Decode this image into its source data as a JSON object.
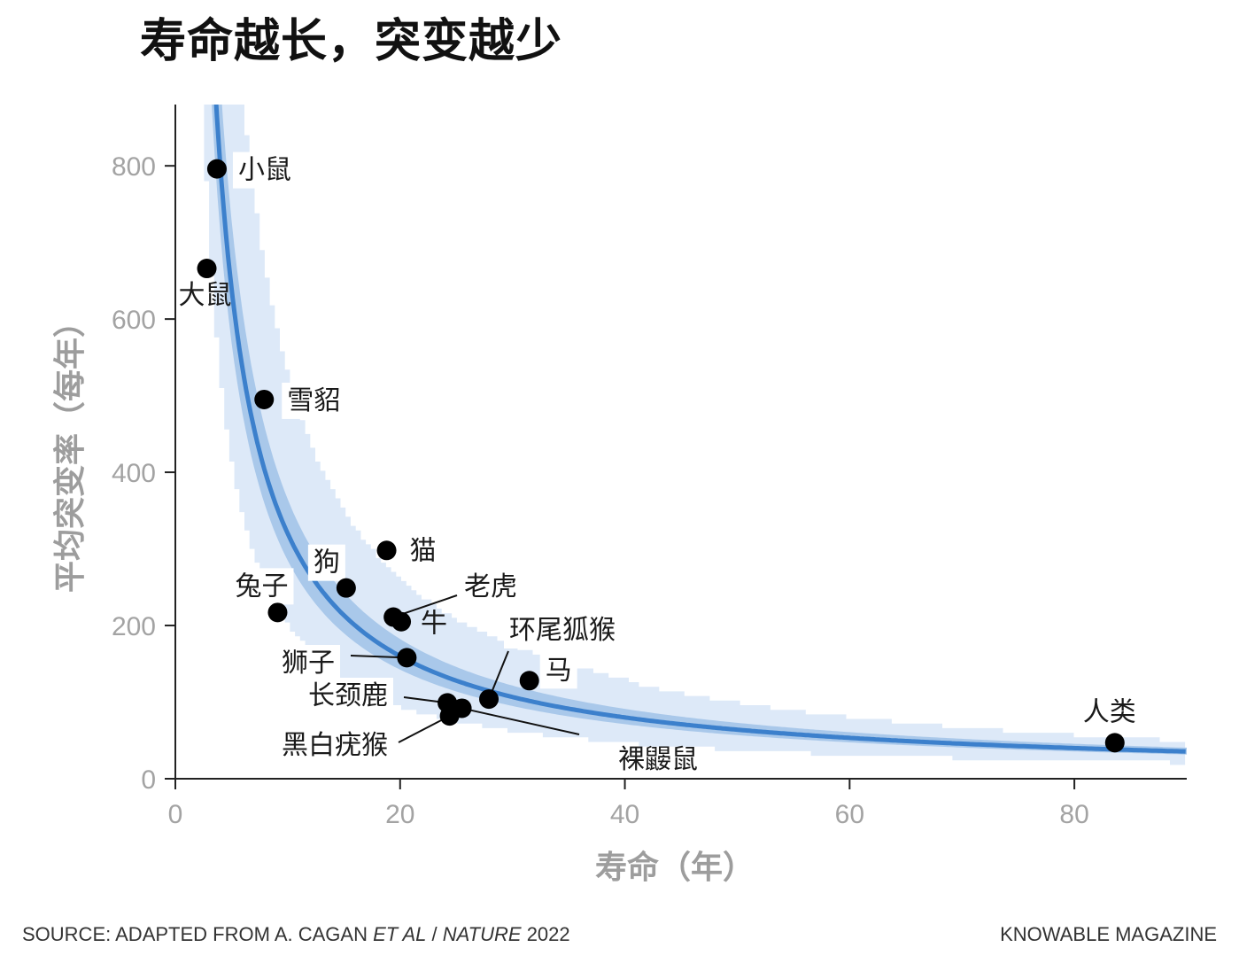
{
  "title": "寿命越长，突变越少",
  "footer": {
    "source_prefix": "SOURCE: ADAPTED FROM A. CAGAN ",
    "source_italic_1": "ET AL",
    "source_sep": " / ",
    "source_italic_2": "NATURE",
    "source_year": " 2022",
    "credit": "KNOWABLE MAGAZINE"
  },
  "colors": {
    "curve": "#3c80cc",
    "inner_band": "#a9c8ea",
    "outer_band": "#dde9f8",
    "point": "#000000",
    "axis": "#222222",
    "tick_text": "#a3a3a3",
    "axis_title": "#9d9d9d"
  },
  "chart_data": {
    "type": "scatter",
    "xlabel": "寿命（年）",
    "ylabel": "平均突变率（每年）",
    "xlim": [
      0,
      90
    ],
    "ylim": [
      0,
      880
    ],
    "xticks": [
      0,
      20,
      40,
      60,
      80
    ],
    "yticks": [
      0,
      200,
      400,
      600,
      800
    ],
    "grid": false,
    "fit": {
      "form": "y = k / x",
      "k": 3200,
      "inner_band": [
        0.89,
        1.14
      ],
      "outer_band_stepped": true
    },
    "points": [
      {
        "label": "小鼠",
        "x": 3.7,
        "y": 796
      },
      {
        "label": "大鼠",
        "x": 2.8,
        "y": 666
      },
      {
        "label": "雪貂",
        "x": 7.9,
        "y": 495
      },
      {
        "label": "猫",
        "x": 18.8,
        "y": 298
      },
      {
        "label": "狗",
        "x": 15.2,
        "y": 249
      },
      {
        "label": "兔子",
        "x": 9.1,
        "y": 217
      },
      {
        "label": "老虎",
        "x": 19.4,
        "y": 211
      },
      {
        "label": "牛",
        "x": 20.1,
        "y": 205
      },
      {
        "label": "环尾狐猴",
        "x": 27.9,
        "y": 104
      },
      {
        "label": "马",
        "x": 31.5,
        "y": 128
      },
      {
        "label": "狮子",
        "x": 20.6,
        "y": 158
      },
      {
        "label": "长颈鹿",
        "x": 24.2,
        "y": 99
      },
      {
        "label": "黑白疣猴",
        "x": 24.4,
        "y": 82
      },
      {
        "label": "裸鼹鼠",
        "x": 25.5,
        "y": 92
      },
      {
        "label": "人类",
        "x": 83.6,
        "y": 47
      }
    ]
  }
}
